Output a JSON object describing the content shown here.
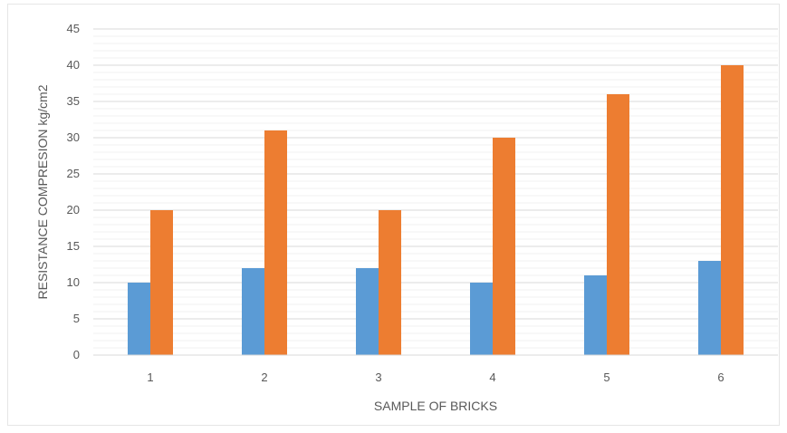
{
  "chart_data": {
    "type": "bar",
    "categories": [
      "1",
      "2",
      "3",
      "4",
      "5",
      "6"
    ],
    "series": [
      {
        "values": [
          10,
          12,
          12,
          10,
          11,
          13
        ],
        "color": "#5B9BD5"
      },
      {
        "values": [
          20,
          31,
          20,
          30,
          36,
          40
        ],
        "color": "#ED7D31"
      }
    ],
    "title": "",
    "xlabel": "SAMPLE OF BRICKS",
    "ylabel": "RESISTANCE COMPRESION kg/cm2",
    "ylim": [
      0,
      45
    ],
    "yticks": [
      0,
      5,
      10,
      15,
      20,
      25,
      30,
      35,
      40,
      45
    ],
    "grid": true,
    "minor_grid": true,
    "legend": "none"
  }
}
